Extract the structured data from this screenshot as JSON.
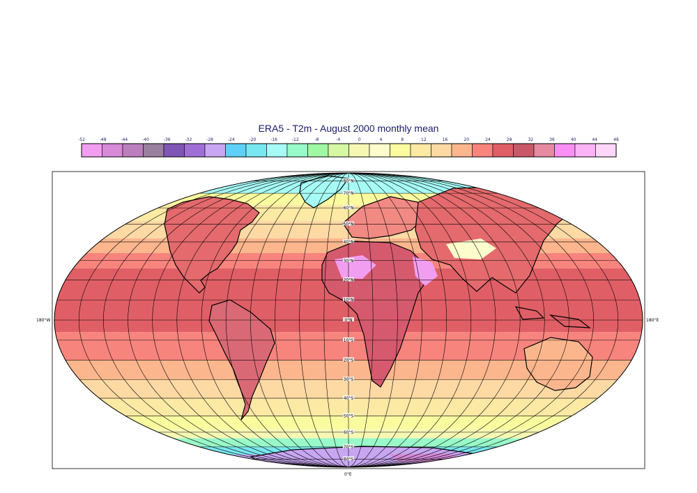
{
  "title": "ERA5 - T2m - August 2000 monthly mean",
  "colorbar": {
    "labels": [
      "-52",
      "-48",
      "-44",
      "-40",
      "-36",
      "-32",
      "-28",
      "-24",
      "-20",
      "-16",
      "-12",
      "-8",
      "-4",
      "0",
      "4",
      "8",
      "12",
      "16",
      "20",
      "24",
      "28",
      "32",
      "36",
      "40",
      "44",
      "48"
    ],
    "colors": [
      "#f29ef0",
      "#d68ad8",
      "#bb7fbe",
      "#99809e",
      "#7f55b6",
      "#a06fd6",
      "#c8a6f2",
      "#5fd1f7",
      "#78e8f0",
      "#a6fbf6",
      "#98f9c9",
      "#a0f7a4",
      "#d6f7a3",
      "#f5f7b3",
      "#fdfccc",
      "#fafb9f",
      "#fbe9a4",
      "#fdd9a4",
      "#fbb68d",
      "#f7847d",
      "#e05f66",
      "#c95868",
      "#e58aa1",
      "#f98ef5",
      "#fcb3f5",
      "#fdd7fa"
    ]
  },
  "graticule": {
    "lat_labels": [
      "80°N",
      "70°N",
      "60°N",
      "50°N",
      "40°N",
      "30°N",
      "20°N",
      "10°N",
      "0°N",
      "10°S",
      "20°S",
      "30°S",
      "40°S",
      "50°S",
      "60°S",
      "70°S",
      "80°S"
    ],
    "lon_left": "180°W",
    "lon_right": "180°E",
    "lon_bottom": "0°E"
  },
  "colors": {
    "tropics": "#e05f66",
    "subtropics": "#f7847d",
    "mid_lat": "#fbb68d",
    "temperate": "#fdd9a4",
    "cool": "#fbe9a4",
    "cold": "#fafb9f",
    "polar": "#a6fbf6",
    "antarctic": "#c8a6f2",
    "graticule": "#000000",
    "coast": "#000000"
  }
}
